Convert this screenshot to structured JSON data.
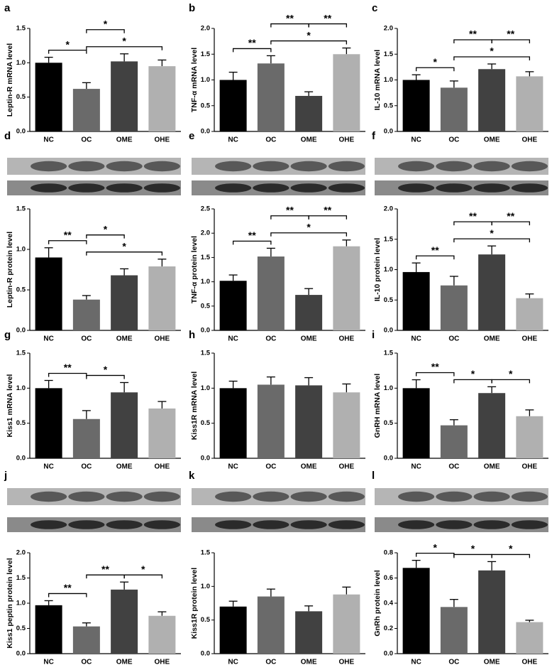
{
  "chart_data": [
    {
      "type": "bar",
      "panel": "a",
      "ylabel": "Leptin-R mRNA level",
      "categories": [
        "NC",
        "OC",
        "OME",
        "OHE"
      ],
      "values": [
        1.0,
        0.62,
        1.02,
        0.95
      ],
      "errors": [
        0.08,
        0.09,
        0.11,
        0.09
      ],
      "colors": [
        "#000000",
        "#6a6a6a",
        "#414141",
        "#b0b0b0"
      ],
      "ylim": [
        0,
        1.5
      ],
      "yticks": [
        {
          "value": 0,
          "label": "0.0"
        },
        0.5,
        {
          "value": 1,
          "label": "1.0"
        },
        1.5
      ],
      "significance": [
        {
          "pair": [
            "NC",
            "OC"
          ],
          "label": "*"
        },
        {
          "pair": [
            "OC",
            "OHE"
          ],
          "label": "*"
        },
        {
          "pair": [
            "OC",
            "OME"
          ],
          "label": "*"
        }
      ]
    },
    {
      "type": "bar",
      "panel": "b",
      "ylabel": "TNF-α mRNA level",
      "categories": [
        "NC",
        "OC",
        "OME",
        "OHE"
      ],
      "values": [
        1.0,
        1.32,
        0.69,
        1.5
      ],
      "errors": [
        0.15,
        0.15,
        0.08,
        0.12
      ],
      "colors": [
        "#000000",
        "#6a6a6a",
        "#414141",
        "#b0b0b0"
      ],
      "ylim": [
        0,
        2
      ],
      "yticks": [
        {
          "value": 0,
          "label": "0.0"
        },
        0.5,
        {
          "value": 1,
          "label": "1.0"
        },
        1.5,
        {
          "value": 2,
          "label": "2.0"
        }
      ],
      "significance": [
        {
          "pair": [
            "NC",
            "OC"
          ],
          "label": "**"
        },
        {
          "pair": [
            "OC",
            "OHE"
          ],
          "label": "*"
        },
        {
          "pair": [
            "OC",
            "OME"
          ],
          "label": "**"
        },
        {
          "pair": [
            "OME",
            "OHE"
          ],
          "label": "**"
        }
      ]
    },
    {
      "type": "bar",
      "panel": "c",
      "ylabel": "IL-10 mRNA level",
      "categories": [
        "NC",
        "OC",
        "OME",
        "OHE"
      ],
      "values": [
        1.0,
        0.85,
        1.21,
        1.07
      ],
      "errors": [
        0.1,
        0.13,
        0.1,
        0.09
      ],
      "colors": [
        "#000000",
        "#6a6a6a",
        "#414141",
        "#b0b0b0"
      ],
      "ylim": [
        0,
        2
      ],
      "yticks": [
        {
          "value": 0,
          "label": "0.0"
        },
        0.5,
        {
          "value": 1,
          "label": "1.0"
        },
        1.5,
        {
          "value": 2,
          "label": "2.0"
        }
      ],
      "significance": [
        {
          "pair": [
            "NC",
            "OC"
          ],
          "label": "*"
        },
        {
          "pair": [
            "OC",
            "OHE"
          ],
          "label": "*"
        },
        {
          "pair": [
            "OC",
            "OME"
          ],
          "label": "**"
        },
        {
          "pair": [
            "OME",
            "OHE"
          ],
          "label": "**"
        }
      ]
    },
    {
      "type": "bar",
      "panel": "d",
      "ylabel": "Leptin-R protein level",
      "categories": [
        "NC",
        "OC",
        "OME",
        "OHE"
      ],
      "values": [
        0.9,
        0.38,
        0.68,
        0.79
      ],
      "errors": [
        0.12,
        0.05,
        0.08,
        0.09
      ],
      "colors": [
        "#000000",
        "#6a6a6a",
        "#414141",
        "#b0b0b0"
      ],
      "ylim": [
        0,
        1.5
      ],
      "yticks": [
        {
          "value": 0,
          "label": "0.0"
        },
        0.5,
        {
          "value": 1,
          "label": "1.0"
        },
        1.5
      ],
      "significance": [
        {
          "pair": [
            "NC",
            "OC"
          ],
          "label": "**"
        },
        {
          "pair": [
            "OC",
            "OHE"
          ],
          "label": "*"
        },
        {
          "pair": [
            "OC",
            "OME"
          ],
          "label": "*"
        }
      ]
    },
    {
      "type": "bar",
      "panel": "e",
      "ylabel": "TNF-α protein level",
      "categories": [
        "NC",
        "OC",
        "OME",
        "OHE"
      ],
      "values": [
        1.02,
        1.52,
        0.73,
        1.73
      ],
      "errors": [
        0.12,
        0.17,
        0.13,
        0.13
      ],
      "colors": [
        "#000000",
        "#6a6a6a",
        "#414141",
        "#b0b0b0"
      ],
      "ylim": [
        0,
        2.5
      ],
      "yticks": [
        {
          "value": 0,
          "label": "0.0"
        },
        0.5,
        {
          "value": 1,
          "label": "1.0"
        },
        1.5,
        {
          "value": 2,
          "label": "2.0"
        },
        2.5
      ],
      "significance": [
        {
          "pair": [
            "NC",
            "OC"
          ],
          "label": "**"
        },
        {
          "pair": [
            "OC",
            "OHE"
          ],
          "label": "*"
        },
        {
          "pair": [
            "OC",
            "OME"
          ],
          "label": "**"
        },
        {
          "pair": [
            "OME",
            "OHE"
          ],
          "label": "**"
        }
      ]
    },
    {
      "type": "bar",
      "panel": "f",
      "ylabel": "IL-10 protein level",
      "categories": [
        "NC",
        "OC",
        "OME",
        "OHE"
      ],
      "values": [
        0.96,
        0.74,
        1.25,
        0.53
      ],
      "errors": [
        0.15,
        0.15,
        0.14,
        0.07
      ],
      "colors": [
        "#000000",
        "#6a6a6a",
        "#414141",
        "#b0b0b0"
      ],
      "ylim": [
        0,
        2
      ],
      "yticks": [
        {
          "value": 0,
          "label": "0.0"
        },
        0.5,
        {
          "value": 1,
          "label": "1.0"
        },
        1.5,
        {
          "value": 2,
          "label": "2.0"
        }
      ],
      "significance": [
        {
          "pair": [
            "NC",
            "OC"
          ],
          "label": "**"
        },
        {
          "pair": [
            "OC",
            "OHE"
          ],
          "label": "*"
        },
        {
          "pair": [
            "OC",
            "OME"
          ],
          "label": "**"
        },
        {
          "pair": [
            "OME",
            "OHE"
          ],
          "label": "**"
        }
      ]
    },
    {
      "type": "bar",
      "panel": "g",
      "ylabel": "Kiss1 mRNA level",
      "categories": [
        "NC",
        "OC",
        "OME",
        "OHE"
      ],
      "values": [
        1.0,
        0.56,
        0.94,
        0.71
      ],
      "errors": [
        0.11,
        0.12,
        0.14,
        0.1
      ],
      "colors": [
        "#000000",
        "#6a6a6a",
        "#414141",
        "#b0b0b0"
      ],
      "ylim": [
        0,
        1.5
      ],
      "yticks": [
        {
          "value": 0,
          "label": "0.0"
        },
        0.5,
        {
          "value": 1,
          "label": "1.0"
        },
        1.5
      ],
      "significance": [
        {
          "pair": [
            "NC",
            "OC"
          ],
          "label": "**"
        },
        {
          "pair": [
            "OC",
            "OME"
          ],
          "label": "*"
        }
      ]
    },
    {
      "type": "bar",
      "panel": "h",
      "ylabel": "Kiss1R mRNA level",
      "categories": [
        "NC",
        "OC",
        "OME",
        "OHE"
      ],
      "values": [
        1.0,
        1.05,
        1.04,
        0.94
      ],
      "errors": [
        0.1,
        0.11,
        0.11,
        0.12
      ],
      "colors": [
        "#000000",
        "#6a6a6a",
        "#414141",
        "#b0b0b0"
      ],
      "ylim": [
        0,
        1.5
      ],
      "yticks": [
        {
          "value": 0,
          "label": "0.0"
        },
        0.5,
        {
          "value": 1,
          "label": "1.0"
        },
        1.5
      ],
      "significance": []
    },
    {
      "type": "bar",
      "panel": "i",
      "ylabel": "GnRH mRNA level",
      "categories": [
        "NC",
        "OC",
        "OME",
        "OHE"
      ],
      "values": [
        1.0,
        0.47,
        0.93,
        0.6
      ],
      "errors": [
        0.12,
        0.08,
        0.09,
        0.09
      ],
      "colors": [
        "#000000",
        "#6a6a6a",
        "#414141",
        "#b0b0b0"
      ],
      "ylim": [
        0,
        1.5
      ],
      "yticks": [
        {
          "value": 0,
          "label": "0.0"
        },
        0.5,
        {
          "value": 1,
          "label": "1.0"
        },
        1.5
      ],
      "significance": [
        {
          "pair": [
            "NC",
            "OC"
          ],
          "label": "**"
        },
        {
          "pair": [
            "OC",
            "OME"
          ],
          "label": "*"
        },
        {
          "pair": [
            "OME",
            "OHE"
          ],
          "label": "*"
        }
      ]
    },
    {
      "type": "bar",
      "panel": "j",
      "ylabel": "Kiss1 peptin protein level",
      "categories": [
        "NC",
        "OC",
        "OME",
        "OHE"
      ],
      "values": [
        0.96,
        0.54,
        1.27,
        0.75
      ],
      "errors": [
        0.09,
        0.07,
        0.15,
        0.08
      ],
      "colors": [
        "#000000",
        "#6a6a6a",
        "#414141",
        "#b0b0b0"
      ],
      "ylim": [
        0,
        2
      ],
      "yticks": [
        {
          "value": 0,
          "label": "0.0"
        },
        0.5,
        {
          "value": 1,
          "label": "1.0"
        },
        1.5,
        {
          "value": 2,
          "label": "2.0"
        }
      ],
      "significance": [
        {
          "pair": [
            "NC",
            "OC"
          ],
          "label": "**"
        },
        {
          "pair": [
            "OC",
            "OME"
          ],
          "label": "**"
        },
        {
          "pair": [
            "OME",
            "OHE"
          ],
          "label": "*"
        }
      ]
    },
    {
      "type": "bar",
      "panel": "k",
      "ylabel": "Kiss1R protein level",
      "categories": [
        "NC",
        "OC",
        "OME",
        "OHE"
      ],
      "values": [
        0.7,
        0.85,
        0.63,
        0.88
      ],
      "errors": [
        0.08,
        0.11,
        0.08,
        0.11
      ],
      "colors": [
        "#000000",
        "#6a6a6a",
        "#414141",
        "#b0b0b0"
      ],
      "ylim": [
        0,
        1.5
      ],
      "yticks": [
        {
          "value": 0,
          "label": "0.0"
        },
        0.5,
        {
          "value": 1,
          "label": "1.0"
        },
        1.5
      ],
      "significance": []
    },
    {
      "type": "bar",
      "panel": "l",
      "ylabel": "GnRh protein level",
      "categories": [
        "NC",
        "OC",
        "OME",
        "OHE"
      ],
      "values": [
        0.68,
        0.37,
        0.66,
        0.25
      ],
      "errors": [
        0.06,
        0.06,
        0.07,
        0.015
      ],
      "colors": [
        "#000000",
        "#6a6a6a",
        "#414141",
        "#b0b0b0"
      ],
      "ylim": [
        0,
        0.8
      ],
      "yticks": [
        {
          "value": 0,
          "label": "0.0"
        },
        0.2,
        0.4,
        0.6,
        0.8
      ],
      "significance": [
        {
          "pair": [
            "NC",
            "OC"
          ],
          "label": "*"
        },
        {
          "pair": [
            "OC",
            "OME"
          ],
          "label": "*"
        },
        {
          "pair": [
            "OME",
            "OHE"
          ],
          "label": "*"
        }
      ]
    }
  ]
}
